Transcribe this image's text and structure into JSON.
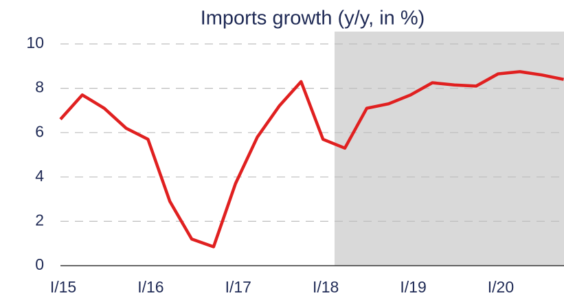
{
  "chart_data": {
    "type": "line",
    "title": "Imports growth (y/y, in %)",
    "categories": [
      "I/15",
      null,
      null,
      null,
      "I/16",
      null,
      null,
      null,
      "I/17",
      null,
      null,
      null,
      "I/18",
      null,
      null,
      null,
      "I/19",
      null,
      null,
      null,
      "I/20",
      null,
      null,
      null
    ],
    "values": [
      6.6,
      7.7,
      7.1,
      6.2,
      5.7,
      2.9,
      1.2,
      0.85,
      3.7,
      5.8,
      7.2,
      8.3,
      5.7,
      5.3,
      7.1,
      7.3,
      7.7,
      8.25,
      8.15,
      8.1,
      8.65,
      8.75,
      8.6,
      8.4
    ],
    "color": "#e02020",
    "ylim": [
      0,
      10
    ],
    "yticks": [
      0,
      2,
      4,
      6,
      8,
      10
    ],
    "grid": true
  }
}
